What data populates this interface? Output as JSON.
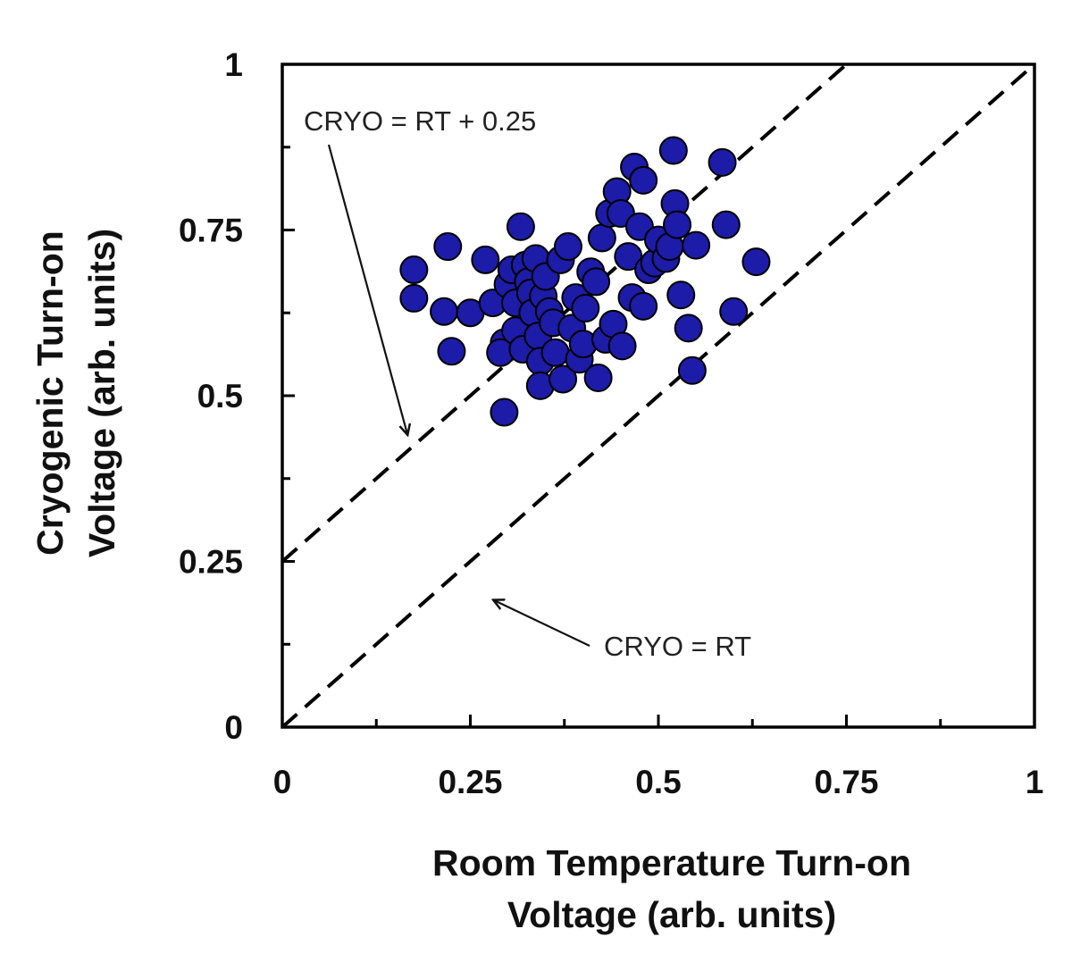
{
  "chart_data": {
    "type": "scatter",
    "xlabel": [
      "Room Temperature Turn-on",
      "Voltage (arb. units)"
    ],
    "ylabel": [
      "Cryogenic Turn-on",
      "Voltage (arb. units)"
    ],
    "xlim": [
      0,
      1
    ],
    "ylim": [
      0,
      1
    ],
    "x_tick_labels": [
      "0",
      "0.25",
      "0.5",
      "0.75",
      "1"
    ],
    "y_tick_labels": [
      "0",
      "0.25",
      "0.5",
      "0.75",
      "1"
    ],
    "grid": false,
    "point_color": "#1c1ca8",
    "point_edge_color": "#000000",
    "reference_lines": [
      {
        "label": "CRYO = RT + 0.25",
        "slope": 1,
        "intercept": 0.25,
        "style": "dashed"
      },
      {
        "label": "CRYO = RT",
        "slope": 1,
        "intercept": 0,
        "style": "dashed"
      }
    ],
    "points": [
      [
        0.175,
        0.69
      ],
      [
        0.175,
        0.647
      ],
      [
        0.22,
        0.725
      ],
      [
        0.215,
        0.627
      ],
      [
        0.225,
        0.567
      ],
      [
        0.25,
        0.625
      ],
      [
        0.27,
        0.705
      ],
      [
        0.28,
        0.64
      ],
      [
        0.295,
        0.58
      ],
      [
        0.29,
        0.565
      ],
      [
        0.295,
        0.475
      ],
      [
        0.3,
        0.668
      ],
      [
        0.305,
        0.69
      ],
      [
        0.31,
        0.64
      ],
      [
        0.31,
        0.598
      ],
      [
        0.317,
        0.755
      ],
      [
        0.32,
        0.57
      ],
      [
        0.323,
        0.697
      ],
      [
        0.327,
        0.672
      ],
      [
        0.33,
        0.655
      ],
      [
        0.333,
        0.625
      ],
      [
        0.337,
        0.707
      ],
      [
        0.34,
        0.59
      ],
      [
        0.343,
        0.552
      ],
      [
        0.343,
        0.515
      ],
      [
        0.347,
        0.65
      ],
      [
        0.35,
        0.68
      ],
      [
        0.355,
        0.627
      ],
      [
        0.36,
        0.61
      ],
      [
        0.363,
        0.565
      ],
      [
        0.37,
        0.705
      ],
      [
        0.373,
        0.525
      ],
      [
        0.38,
        0.725
      ],
      [
        0.385,
        0.602
      ],
      [
        0.39,
        0.648
      ],
      [
        0.395,
        0.555
      ],
      [
        0.4,
        0.578
      ],
      [
        0.403,
        0.632
      ],
      [
        0.41,
        0.687
      ],
      [
        0.417,
        0.672
      ],
      [
        0.42,
        0.527
      ],
      [
        0.425,
        0.738
      ],
      [
        0.43,
        0.585
      ],
      [
        0.435,
        0.775
      ],
      [
        0.44,
        0.608
      ],
      [
        0.445,
        0.808
      ],
      [
        0.45,
        0.775
      ],
      [
        0.452,
        0.575
      ],
      [
        0.46,
        0.71
      ],
      [
        0.465,
        0.648
      ],
      [
        0.468,
        0.845
      ],
      [
        0.475,
        0.755
      ],
      [
        0.48,
        0.825
      ],
      [
        0.48,
        0.635
      ],
      [
        0.487,
        0.69
      ],
      [
        0.495,
        0.7
      ],
      [
        0.5,
        0.735
      ],
      [
        0.51,
        0.707
      ],
      [
        0.515,
        0.725
      ],
      [
        0.52,
        0.87
      ],
      [
        0.522,
        0.79
      ],
      [
        0.525,
        0.758
      ],
      [
        0.53,
        0.652
      ],
      [
        0.54,
        0.602
      ],
      [
        0.545,
        0.538
      ],
      [
        0.55,
        0.727
      ],
      [
        0.585,
        0.852
      ],
      [
        0.59,
        0.758
      ],
      [
        0.6,
        0.627
      ],
      [
        0.63,
        0.702
      ]
    ],
    "annotations": [
      {
        "text": "CRYO = RT + 0.25",
        "target": [
          0.16,
          0.41
        ]
      },
      {
        "text": "CRYO = RT",
        "target": [
          0.28,
          0.19
        ]
      }
    ]
  }
}
